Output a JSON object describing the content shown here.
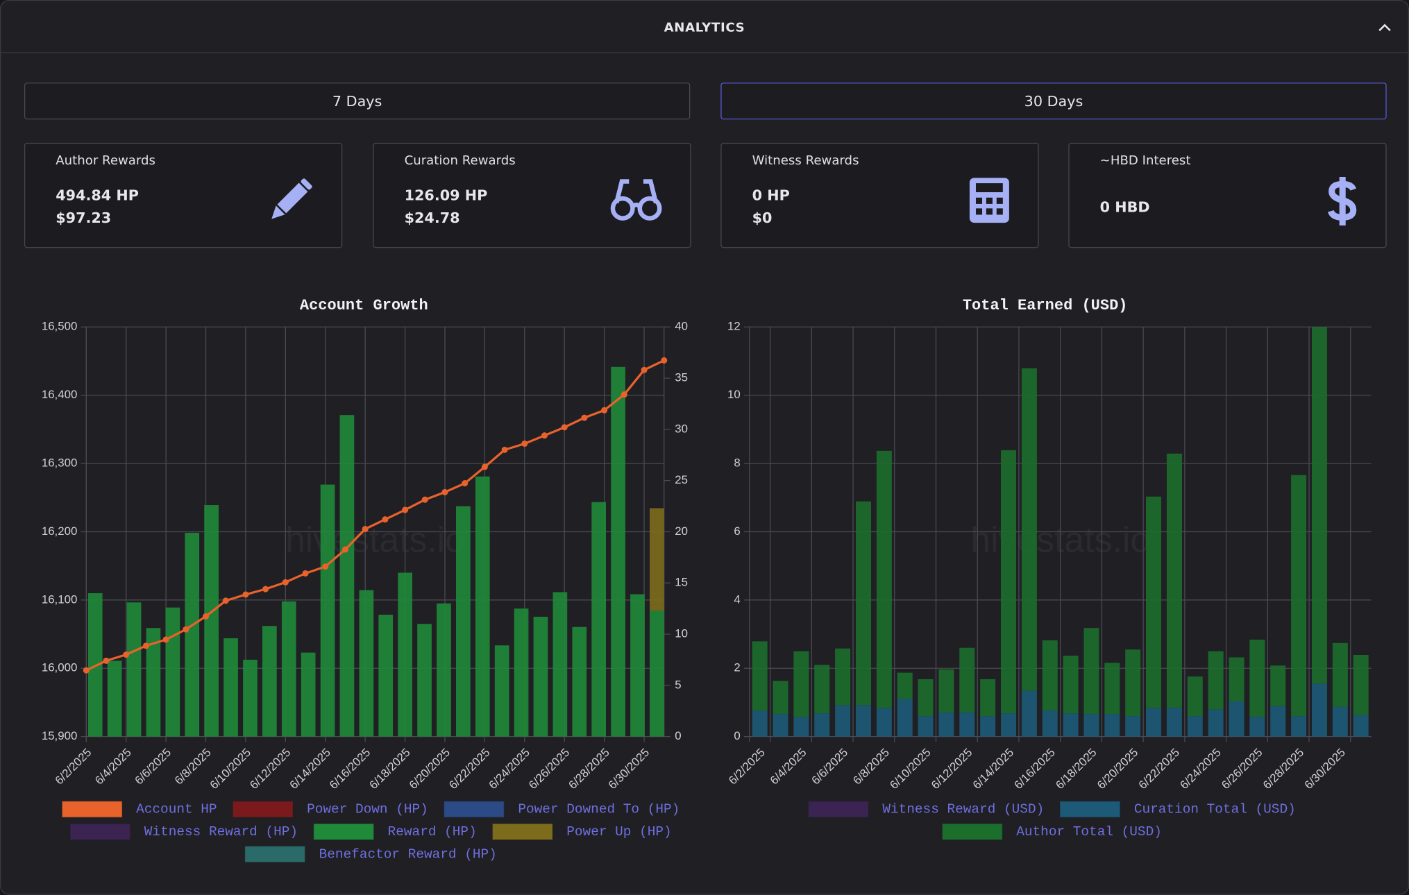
{
  "header": {
    "title": "ANALYTICS"
  },
  "tabs": [
    "7 Days",
    "30 Days"
  ],
  "cards": [
    {
      "label": "Author Rewards",
      "lines": [
        "494.84 HP",
        "$97.23"
      ]
    },
    {
      "label": "Curation Rewards",
      "lines": [
        "126.09 HP",
        "$24.78"
      ]
    },
    {
      "label": "Witness Rewards",
      "lines": [
        "0 HP",
        "$0"
      ]
    },
    {
      "label": "~HBD Interest",
      "lines": [
        "0 HBD"
      ]
    }
  ],
  "chart_data": [
    {
      "type": "combo",
      "title": "Account Growth",
      "watermark": "hivestats.io",
      "categories": [
        "6/2/2025",
        null,
        "6/4/2025",
        null,
        "6/6/2025",
        null,
        "6/8/2025",
        null,
        "6/10/2025",
        null,
        "6/12/2025",
        null,
        "6/14/2025",
        null,
        "6/16/2025",
        null,
        "6/18/2025",
        null,
        "6/20/2025",
        null,
        "6/22/2025",
        null,
        "6/24/2025",
        null,
        "6/26/2025",
        null,
        "6/28/2025",
        null,
        "6/30/2025",
        null
      ],
      "ylim": [
        15900,
        16500
      ],
      "yticks": [
        {
          "value": 15900,
          "label": "15,900"
        },
        {
          "value": 16000,
          "label": "16,000"
        },
        {
          "value": 16100,
          "label": "16,100"
        },
        {
          "value": 16200,
          "label": "16,200"
        },
        {
          "value": 16300,
          "label": "16,300"
        },
        {
          "value": 16400,
          "label": "16,400"
        },
        {
          "value": 16500,
          "label": "16,500"
        }
      ],
      "y2lim": [
        0,
        40
      ],
      "y2ticks": [
        0,
        5,
        10,
        15,
        20,
        25,
        30,
        35,
        40
      ],
      "grid": true,
      "stacked": true,
      "series": [
        {
          "name": "Account HP",
          "type": "line",
          "color": "#e8622c",
          "values": [
            15997,
            16011,
            16020,
            16033,
            16042,
            16057,
            16076,
            16099,
            16108,
            16116,
            16126,
            16139,
            16149,
            16174,
            16204,
            16218,
            16232,
            16247,
            16258,
            16271,
            16295,
            16320,
            16329,
            16341,
            16353,
            16367,
            16378,
            16401,
            16437,
            16451
          ]
        },
        {
          "name": "Power Down (HP)",
          "axis": "y2",
          "color": "#7a1a1c",
          "values": [
            0,
            0,
            0,
            0,
            0,
            0,
            0,
            0,
            0,
            0,
            0,
            0,
            0,
            0,
            0,
            0,
            0,
            0,
            0,
            0,
            0,
            0,
            0,
            0,
            0,
            0,
            0,
            0,
            0,
            0
          ]
        },
        {
          "name": "Power Downed To (HP)",
          "axis": "y2",
          "color": "#2b4a86",
          "values": [
            0,
            0,
            0,
            0,
            0,
            0,
            0,
            0,
            0,
            0,
            0,
            0,
            0,
            0,
            0,
            0,
            0,
            0,
            0,
            0,
            0,
            0,
            0,
            0,
            0,
            0,
            0,
            0,
            0,
            0
          ]
        },
        {
          "name": "Witness Reward (HP)",
          "axis": "y2",
          "color": "#3b2352",
          "values": [
            0,
            0,
            0,
            0,
            0,
            0,
            0,
            0,
            0,
            0,
            0,
            0,
            0,
            0,
            0,
            0,
            0,
            0,
            0,
            0,
            0,
            0,
            0,
            0,
            0,
            0,
            0,
            0,
            0,
            0
          ]
        },
        {
          "name": "Reward (HP)",
          "axis": "y2",
          "color": "#1f8a3a",
          "values": [
            14.0,
            7.4,
            13.1,
            10.6,
            12.6,
            19.9,
            22.6,
            9.6,
            7.5,
            10.8,
            13.2,
            8.2,
            24.6,
            31.4,
            14.3,
            11.9,
            16.0,
            11.0,
            13.0,
            22.5,
            25.4,
            8.9,
            12.5,
            11.7,
            14.1,
            10.7,
            22.9,
            36.1,
            13.9,
            12.3
          ]
        },
        {
          "name": "Power Up (HP)",
          "axis": "y2",
          "color": "#7d6c1c",
          "values": [
            0,
            0,
            0,
            0,
            0,
            0,
            0,
            0,
            0,
            0,
            0,
            0,
            0,
            0,
            0,
            0,
            0,
            0,
            0,
            0,
            0,
            0,
            0,
            0,
            0,
            0,
            0,
            0,
            0,
            10.0
          ]
        },
        {
          "name": "Benefactor Reward (HP)",
          "axis": "y2",
          "color": "#2a6a68",
          "values": [
            0,
            0,
            0,
            0,
            0,
            0,
            0,
            0,
            0,
            0,
            0,
            0,
            0,
            0,
            0,
            0,
            0,
            0,
            0,
            0,
            0,
            0,
            0,
            0,
            0,
            0,
            0,
            0,
            0,
            0
          ]
        }
      ]
    },
    {
      "type": "bar",
      "title": "Total Earned (USD)",
      "watermark": "hivestats.io",
      "categories": [
        "6/2/2025",
        null,
        "6/4/2025",
        null,
        "6/6/2025",
        null,
        "6/8/2025",
        null,
        "6/10/2025",
        null,
        "6/12/2025",
        null,
        "6/14/2025",
        null,
        "6/16/2025",
        null,
        "6/18/2025",
        null,
        "6/20/2025",
        null,
        "6/22/2025",
        null,
        "6/24/2025",
        null,
        "6/26/2025",
        null,
        "6/28/2025",
        null,
        "6/30/2025",
        null
      ],
      "ylim": [
        0,
        12
      ],
      "yticks": [
        0,
        2,
        4,
        6,
        8,
        10,
        12
      ],
      "grid": true,
      "stacked": true,
      "series": [
        {
          "name": "Witness Reward (USD)",
          "color": "#3b2352",
          "values": [
            0,
            0,
            0,
            0,
            0,
            0,
            0,
            0,
            0,
            0,
            0,
            0,
            0,
            0,
            0,
            0,
            0,
            0,
            0,
            0,
            0,
            0,
            0,
            0,
            0,
            0,
            0,
            0,
            0,
            0
          ]
        },
        {
          "name": "Curation Total (USD)",
          "color": "#1d5a78",
          "values": [
            0.76,
            0.66,
            0.58,
            0.68,
            0.92,
            0.92,
            0.84,
            1.1,
            0.6,
            0.71,
            0.71,
            0.6,
            0.68,
            1.34,
            0.76,
            0.68,
            0.66,
            0.66,
            0.6,
            0.84,
            0.84,
            0.6,
            0.79,
            1.03,
            0.58,
            0.89,
            0.6,
            1.55,
            0.87,
            0.63
          ]
        },
        {
          "name": "Author Total (USD)",
          "color": "#1c6e2d",
          "values": [
            2.03,
            0.97,
            1.92,
            1.42,
            1.66,
            5.97,
            7.53,
            0.77,
            1.08,
            1.26,
            1.89,
            1.08,
            7.71,
            9.45,
            2.06,
            1.69,
            2.52,
            1.5,
            1.95,
            6.19,
            7.45,
            1.16,
            1.71,
            1.29,
            2.26,
            1.19,
            7.06,
            10.45,
            1.87,
            1.76
          ]
        }
      ]
    }
  ]
}
